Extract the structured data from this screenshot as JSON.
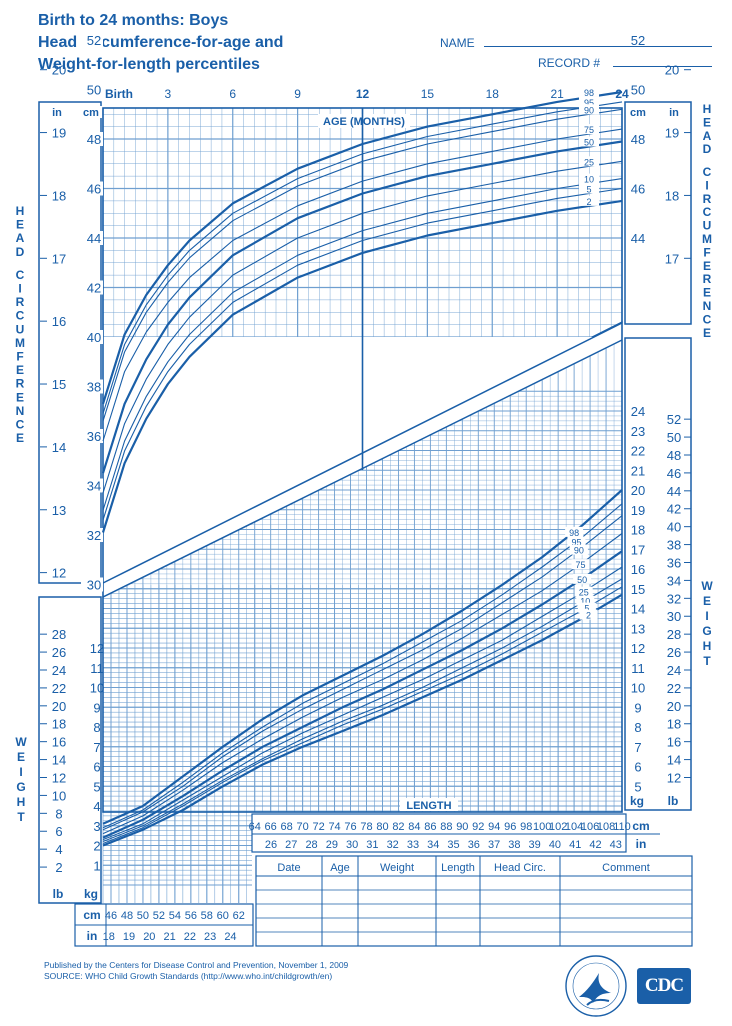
{
  "title": {
    "line1": "Birth to 24 months: Boys",
    "line2": "Head circumference-for-age and",
    "line3": "Weight-for-length percentiles"
  },
  "header_fields": {
    "name_label": "NAME",
    "record_label": "RECORD #"
  },
  "footer": {
    "published": "Published by the Centers for Disease Control and Prevention, November 1, 2009",
    "source": "SOURCE:  WHO Child Growth Standards (http://www.who.int/childgrowth/en)",
    "logo_text": "CDC"
  },
  "record_table": {
    "headers": [
      "Date",
      "Age",
      "Weight",
      "Length",
      "Head Circ.",
      "Comment"
    ]
  },
  "side_labels": {
    "head_circumference": "HEAD CIRCUMFERENCE",
    "weight": "WEIGHT"
  },
  "chart_data": [
    {
      "type": "line",
      "title": "Head circumference-for-age",
      "xlabel": "AGE (MONTHS)",
      "ylabel": "HEAD CIRCUMFERENCE",
      "x_tick_labels": [
        "Birth",
        "3",
        "6",
        "9",
        "12",
        "15",
        "18",
        "21",
        "24"
      ],
      "xlim": [
        0,
        24
      ],
      "ylim_cm": [
        29,
        53
      ],
      "y_ticks_cm": [
        "30",
        "32",
        "34",
        "36",
        "38",
        "40",
        "42",
        "44",
        "46",
        "48",
        "50",
        "52"
      ],
      "y_ticks_in": [
        "12",
        "13",
        "14",
        "15",
        "16",
        "17",
        "18",
        "19",
        "20"
      ],
      "y_ticks_cm_right": [
        "44",
        "46",
        "48",
        "50",
        "52"
      ],
      "y_ticks_in_right": [
        "17",
        "18",
        "19",
        "20"
      ],
      "unit_labels": {
        "cm": "cm",
        "in": "in"
      },
      "x": [
        0,
        1,
        2,
        3,
        4,
        6,
        9,
        12,
        15,
        18,
        21,
        24
      ],
      "series": [
        {
          "name": "98",
          "values": [
            37.3,
            40.1,
            41.7,
            42.9,
            43.9,
            45.4,
            46.8,
            47.8,
            48.5,
            49.0,
            49.5,
            49.9
          ]
        },
        {
          "name": "95",
          "values": [
            36.9,
            39.7,
            41.3,
            42.5,
            43.5,
            45.0,
            46.4,
            47.4,
            48.1,
            48.6,
            49.1,
            49.5
          ]
        },
        {
          "name": "90",
          "values": [
            36.6,
            39.4,
            41.0,
            42.2,
            43.2,
            44.7,
            46.1,
            47.1,
            47.8,
            48.3,
            48.8,
            49.2
          ]
        },
        {
          "name": "75",
          "values": [
            35.8,
            38.6,
            40.2,
            41.4,
            42.4,
            43.9,
            45.3,
            46.3,
            47.0,
            47.5,
            48.0,
            48.4
          ]
        },
        {
          "name": "50",
          "values": [
            34.5,
            37.3,
            39.1,
            40.5,
            41.6,
            43.3,
            44.8,
            45.8,
            46.5,
            47.0,
            47.5,
            47.9
          ]
        },
        {
          "name": "25",
          "values": [
            33.7,
            36.5,
            38.3,
            39.7,
            40.8,
            42.5,
            44.0,
            45.0,
            45.7,
            46.2,
            46.7,
            47.1
          ]
        },
        {
          "name": "10",
          "values": [
            33.0,
            35.8,
            37.6,
            39.0,
            40.1,
            41.8,
            43.3,
            44.3,
            45.0,
            45.5,
            46.0,
            46.4
          ]
        },
        {
          "name": "5",
          "values": [
            32.6,
            35.4,
            37.2,
            38.6,
            39.7,
            41.4,
            42.9,
            43.9,
            44.6,
            45.1,
            45.6,
            46.0
          ]
        },
        {
          "name": "2",
          "values": [
            32.1,
            34.9,
            36.7,
            38.1,
            39.2,
            40.9,
            42.4,
            43.4,
            44.1,
            44.6,
            45.1,
            45.5
          ]
        }
      ]
    },
    {
      "type": "line",
      "title": "Weight-for-length",
      "xlabel": "LENGTH",
      "ylabel": "WEIGHT",
      "xlim": [
        45,
        110
      ],
      "ylim_kg": [
        0,
        25
      ],
      "x_ticks_cm_bottom": [
        "46",
        "48",
        "50",
        "52",
        "54",
        "56",
        "58",
        "60",
        "62"
      ],
      "x_ticks_in_bottom": [
        "18",
        "19",
        "20",
        "21",
        "22",
        "23",
        "24"
      ],
      "x_ticks_cm_top": [
        "64",
        "66",
        "68",
        "70",
        "72",
        "74",
        "76",
        "78",
        "80",
        "82",
        "84",
        "86",
        "88",
        "90",
        "92",
        "94",
        "96",
        "98",
        "100",
        "102",
        "104",
        "106",
        "108",
        "110"
      ],
      "x_ticks_in_top": [
        "26",
        "27",
        "28",
        "29",
        "30",
        "31",
        "32",
        "33",
        "34",
        "35",
        "36",
        "37",
        "38",
        "39",
        "40",
        "41",
        "42",
        "43"
      ],
      "y_ticks_kg_left": [
        "1",
        "2",
        "3",
        "4",
        "5",
        "6",
        "7",
        "8",
        "9",
        "10",
        "11",
        "12"
      ],
      "y_ticks_lb_left": [
        "2",
        "4",
        "6",
        "8",
        "10",
        "12",
        "14",
        "16",
        "18",
        "20",
        "22",
        "24",
        "26",
        "28"
      ],
      "y_ticks_kg_right": [
        "5",
        "6",
        "7",
        "8",
        "9",
        "10",
        "11",
        "12",
        "13",
        "14",
        "15",
        "16",
        "17",
        "18",
        "19",
        "20",
        "21",
        "22",
        "23",
        "24"
      ],
      "y_ticks_lb_right": [
        "12",
        "14",
        "16",
        "18",
        "20",
        "22",
        "24",
        "26",
        "28",
        "30",
        "32",
        "34",
        "36",
        "38",
        "40",
        "42",
        "44",
        "46",
        "48",
        "50",
        "52"
      ],
      "unit_labels": {
        "cm": "cm",
        "in": "in",
        "kg": "kg",
        "lb": "lb"
      },
      "x": [
        45,
        50,
        55,
        60,
        65,
        70,
        75,
        80,
        85,
        90,
        95,
        100,
        105,
        110
      ],
      "series": [
        {
          "name": "98",
          "values": [
            3.1,
            4.0,
            5.5,
            7.0,
            8.4,
            9.6,
            10.6,
            11.6,
            12.7,
            13.9,
            15.2,
            16.6,
            18.2,
            20.0
          ]
        },
        {
          "name": "95",
          "values": [
            2.9,
            3.8,
            5.2,
            6.7,
            8.0,
            9.2,
            10.2,
            11.2,
            12.3,
            13.4,
            14.7,
            16.1,
            17.6,
            19.3
          ]
        },
        {
          "name": "90",
          "values": [
            2.8,
            3.7,
            5.0,
            6.5,
            7.8,
            8.9,
            9.9,
            10.9,
            11.9,
            13.0,
            14.3,
            15.6,
            17.1,
            18.7
          ]
        },
        {
          "name": "75",
          "values": [
            2.6,
            3.5,
            4.8,
            6.2,
            7.4,
            8.5,
            9.5,
            10.4,
            11.4,
            12.5,
            13.7,
            14.9,
            16.3,
            17.8
          ]
        },
        {
          "name": "50",
          "values": [
            2.4,
            3.3,
            4.5,
            5.8,
            7.0,
            8.0,
            9.0,
            9.9,
            10.9,
            11.9,
            13.0,
            14.2,
            15.5,
            16.9
          ]
        },
        {
          "name": "25",
          "values": [
            2.3,
            3.1,
            4.3,
            5.5,
            6.7,
            7.7,
            8.6,
            9.5,
            10.4,
            11.4,
            12.4,
            13.6,
            14.8,
            16.1
          ]
        },
        {
          "name": "10",
          "values": [
            2.2,
            3.0,
            4.1,
            5.3,
            6.4,
            7.4,
            8.3,
            9.1,
            10.0,
            11.0,
            12.0,
            13.1,
            14.3,
            15.5
          ]
        },
        {
          "name": "5",
          "values": [
            2.1,
            2.9,
            4.0,
            5.2,
            6.3,
            7.2,
            8.1,
            8.9,
            9.8,
            10.7,
            11.7,
            12.8,
            13.9,
            15.1
          ]
        },
        {
          "name": "2",
          "values": [
            2.0,
            2.8,
            3.8,
            5.0,
            6.1,
            7.0,
            7.8,
            8.6,
            9.5,
            10.4,
            11.4,
            12.4,
            13.5,
            14.7
          ]
        }
      ]
    }
  ],
  "colors": {
    "ink": "#1a5fa8",
    "grid": "#6f9fd0",
    "paper": "#ffffff"
  }
}
